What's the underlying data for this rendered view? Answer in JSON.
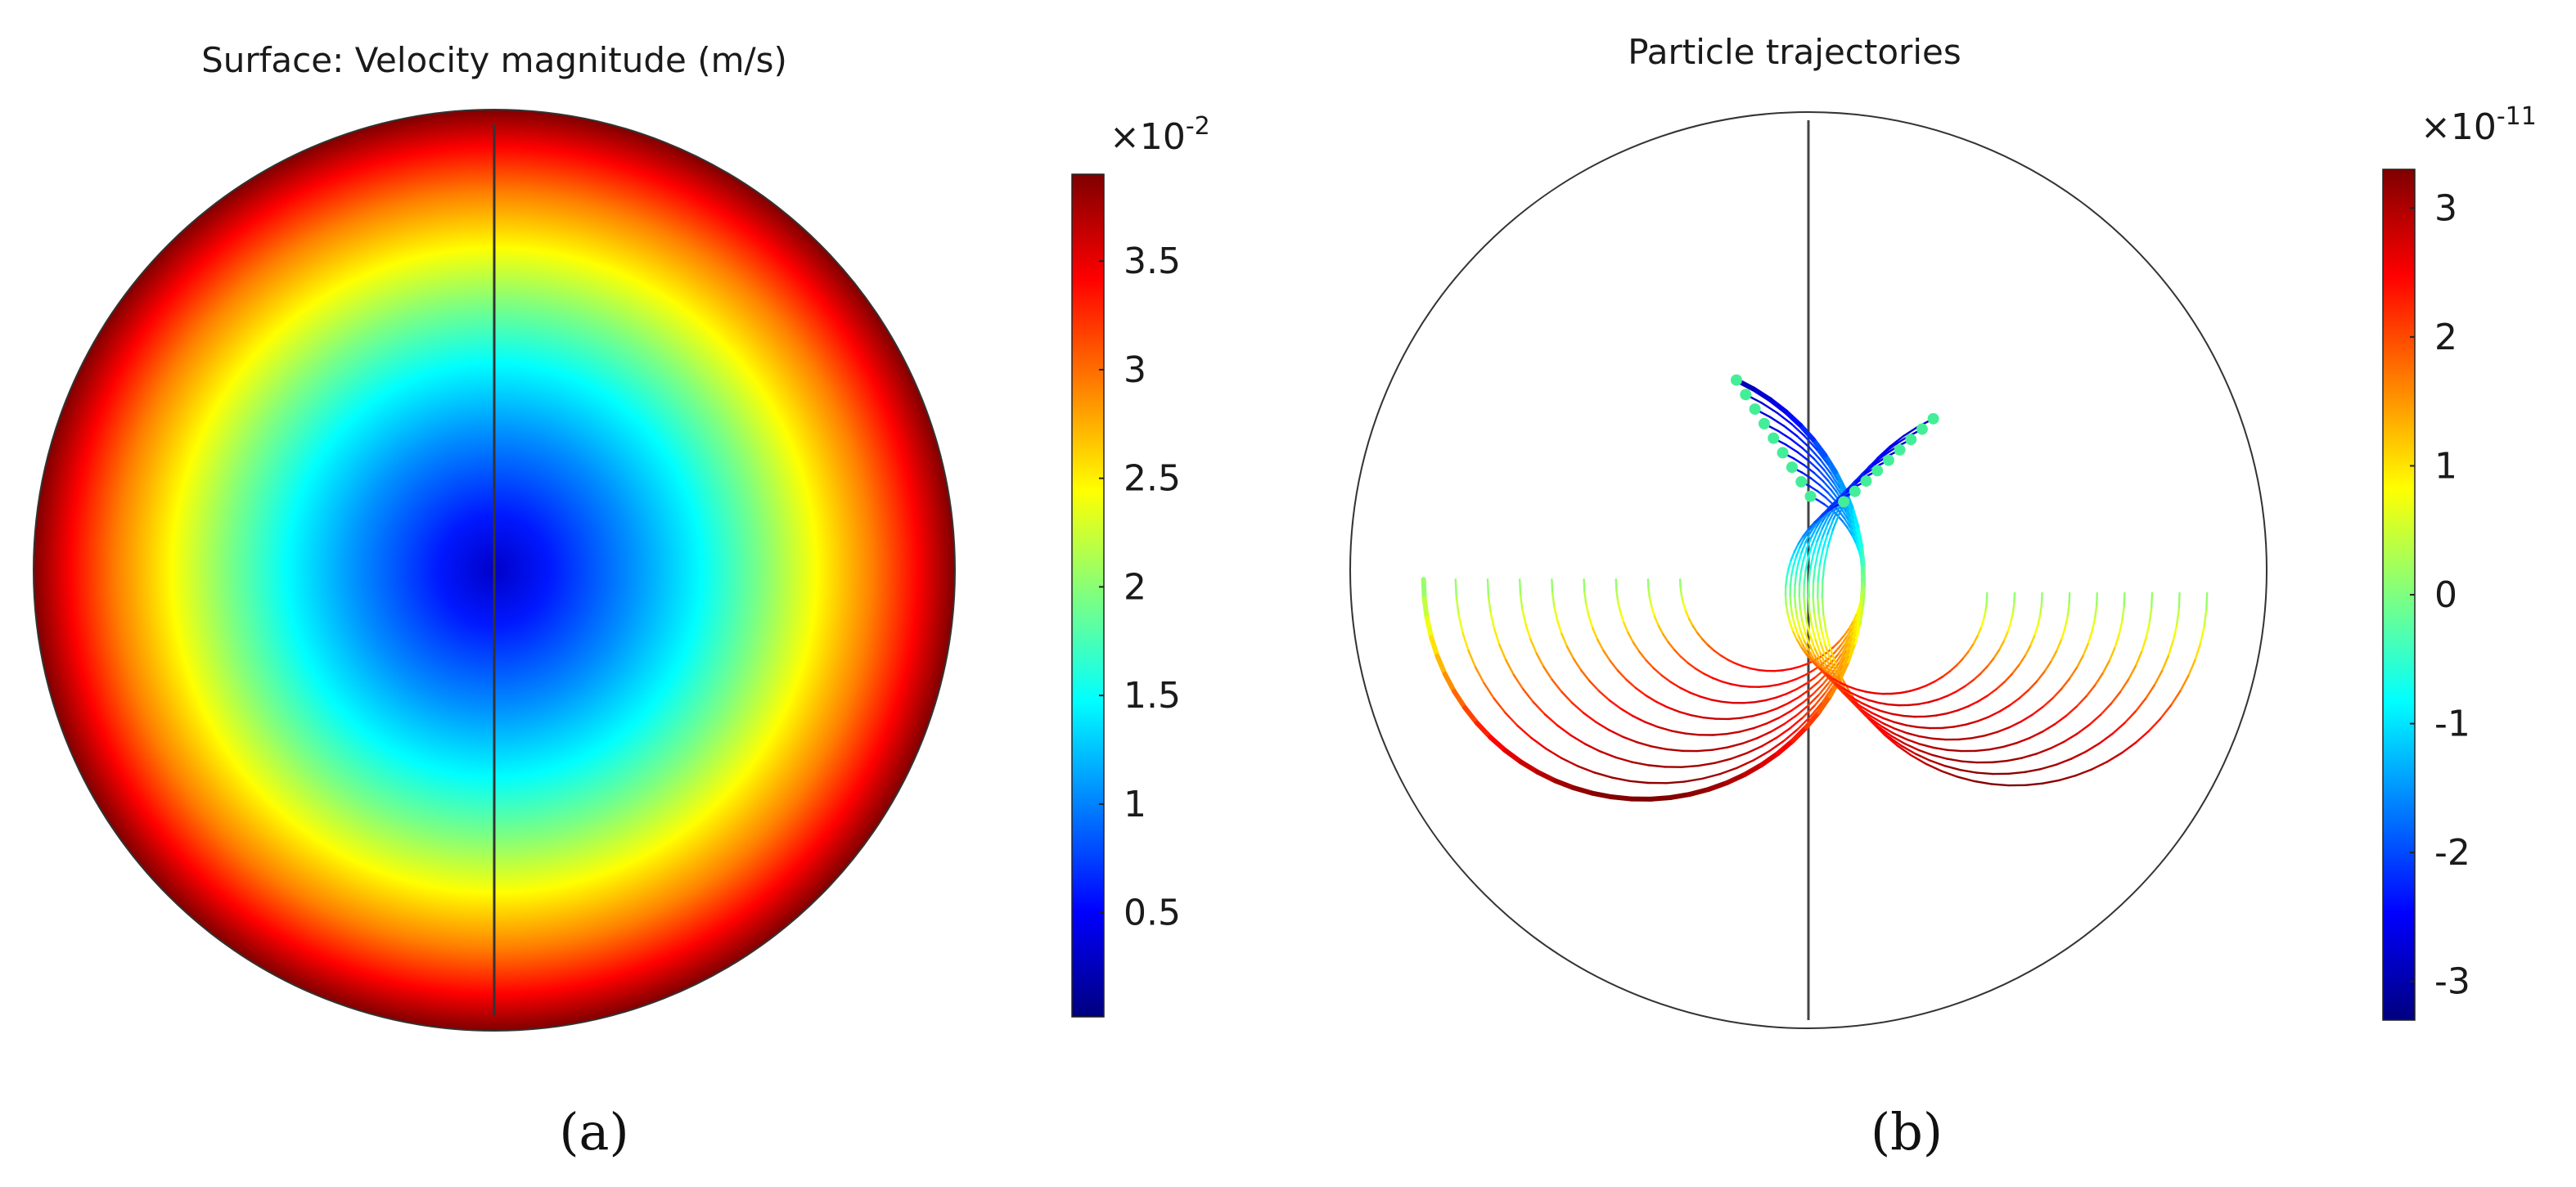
{
  "colors": {
    "jet": [
      "#00007f",
      "#0000ff",
      "#007fff",
      "#00ffff",
      "#7fff7f",
      "#ffff00",
      "#ff7f00",
      "#ff0000",
      "#7f0000"
    ],
    "outline": "#333333",
    "axis_line": "#444444"
  },
  "chart_data": [
    {
      "type": "heatmap",
      "panel_label": "(a)",
      "title": "Surface: Velocity magnitude (m/s)",
      "colorbar": {
        "multiplier_base": "×10",
        "multiplier_exp": "-2",
        "range": [
          0.02,
          3.9
        ],
        "ticks": [
          0.5,
          1,
          1.5,
          2,
          2.5,
          3,
          3.5
        ],
        "tick_labels": [
          "0.5",
          "1",
          "1.5",
          "2",
          "2.5",
          "3",
          "3.5"
        ]
      },
      "field": {
        "shape": "disk",
        "profile": "radial",
        "center_value": 0.02,
        "edge_value": 3.9
      },
      "grid": false
    },
    {
      "type": "line",
      "panel_label": "(b)",
      "title": "Particle trajectories",
      "colorbar": {
        "multiplier_base": "×10",
        "multiplier_exp": "-11",
        "range": [
          -3.3,
          3.3
        ],
        "ticks": [
          -3,
          -2,
          -1,
          0,
          1,
          2,
          3
        ],
        "tick_labels": [
          "-3",
          "-2",
          "-1",
          "0",
          "1",
          "2",
          "3"
        ]
      },
      "domain": {
        "x": [
          -1,
          1
        ],
        "y": [
          -1,
          1
        ],
        "shape": "disk"
      },
      "trajectories": {
        "left_family": {
          "count": 9,
          "center_x_start": -0.36,
          "center_x_step": 0.035,
          "center_y": -0.02,
          "radius_start": 0.48,
          "radius_step": -0.035,
          "angle_start_deg": 180,
          "angle_end_deg": 425
        },
        "right_family": {
          "count": 9,
          "center_x_start": 0.45,
          "center_x_step": -0.035,
          "center_y": -0.05,
          "radius_start": 0.42,
          "radius_step": -0.025,
          "angle_start_deg": 0,
          "angle_end_deg": -245
        },
        "value_range": [
          -3.3,
          3.3
        ]
      },
      "grid": false
    }
  ]
}
